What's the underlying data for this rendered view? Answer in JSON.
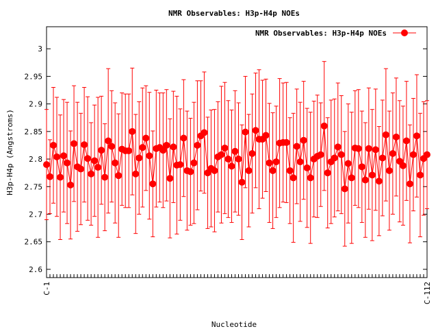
{
  "chart_data": {
    "type": "line",
    "title": "NMR Observables: H3p-H4p NOEs",
    "xlabel": "Nucleotide",
    "ylabel": "H3p-H4p (Angstroms)",
    "ylim": [
      2.585,
      3.04
    ],
    "yticks": [
      2.6,
      2.65,
      2.7,
      2.75,
      2.8,
      2.85,
      2.9,
      2.95,
      3.0
    ],
    "ytick_labels": [
      "2.6",
      "2.65",
      "2.7",
      "2.75",
      "2.8",
      "2.85",
      "2.9",
      "2.95",
      "3"
    ],
    "x_first_label": "C-1",
    "x_last_label": "C-112",
    "legend_position": "top-right",
    "grid": false,
    "series": [
      {
        "name": "NMR Observables: H3p-H4p NOEs",
        "color": "#ff0000",
        "x": [
          1,
          2,
          3,
          4,
          5,
          6,
          7,
          8,
          9,
          10,
          11,
          12,
          13,
          14,
          15,
          16,
          17,
          18,
          19,
          20,
          21,
          22,
          23,
          24,
          25,
          26,
          27,
          28,
          29,
          30,
          31,
          32,
          33,
          34,
          35,
          36,
          37,
          38,
          39,
          40,
          41,
          42,
          43,
          44,
          45,
          46,
          47,
          48,
          49,
          50,
          51,
          52,
          53,
          54,
          55,
          56,
          57,
          58,
          59,
          60,
          61,
          62,
          63,
          64,
          65,
          66,
          67,
          68,
          69,
          70,
          71,
          72,
          73,
          74,
          75,
          76,
          77,
          78,
          79,
          80,
          81,
          82,
          83,
          84,
          85,
          86,
          87,
          88,
          89,
          90,
          91,
          92,
          93,
          94,
          95,
          96,
          97,
          98,
          99,
          100,
          101,
          102,
          103,
          104,
          105,
          106,
          107,
          108,
          109,
          110,
          111,
          112
        ],
        "values": [
          2.79,
          2.768,
          2.825,
          2.804,
          2.767,
          2.806,
          2.793,
          2.753,
          2.828,
          2.786,
          2.782,
          2.826,
          2.801,
          2.773,
          2.797,
          2.785,
          2.816,
          2.767,
          2.833,
          2.823,
          2.793,
          2.77,
          2.818,
          2.815,
          2.815,
          2.85,
          2.773,
          2.802,
          2.821,
          2.838,
          2.806,
          2.755,
          2.819,
          2.821,
          2.816,
          2.825,
          2.765,
          2.822,
          2.789,
          2.79,
          2.838,
          2.779,
          2.777,
          2.793,
          2.825,
          2.842,
          2.848,
          2.775,
          2.783,
          2.779,
          2.804,
          2.808,
          2.82,
          2.8,
          2.787,
          2.814,
          2.8,
          2.758,
          2.849,
          2.779,
          2.81,
          2.852,
          2.836,
          2.836,
          2.843,
          2.793,
          2.779,
          2.795,
          2.829,
          2.83,
          2.83,
          2.779,
          2.766,
          2.823,
          2.795,
          2.834,
          2.784,
          2.766,
          2.8,
          2.805,
          2.808,
          2.86,
          2.775,
          2.795,
          2.802,
          2.822,
          2.808,
          2.746,
          2.792,
          2.766,
          2.82,
          2.819,
          2.786,
          2.762,
          2.819,
          2.771,
          2.817,
          2.76,
          2.802,
          2.844,
          2.779,
          2.81,
          2.84,
          2.796,
          2.788,
          2.833,
          2.755,
          2.808,
          2.842,
          2.771,
          2.801,
          2.808
        ],
        "errors": [
          0.1,
          0.067,
          0.105,
          0.108,
          0.113,
          0.102,
          0.11,
          0.098,
          0.105,
          0.117,
          0.101,
          0.104,
          0.112,
          0.093,
          0.101,
          0.127,
          0.098,
          0.097,
          0.131,
          0.101,
          0.109,
          0.112,
          0.102,
          0.103,
          0.103,
          0.115,
          0.108,
          0.102,
          0.108,
          0.095,
          0.115,
          0.096,
          0.106,
          0.099,
          0.104,
          0.101,
          0.108,
          0.101,
          0.125,
          0.101,
          0.106,
          0.108,
          0.097,
          0.11,
          0.117,
          0.1,
          0.11,
          0.101,
          0.106,
          0.111,
          0.1,
          0.124,
          0.119,
          0.106,
          0.102,
          0.11,
          0.102,
          0.104,
          0.101,
          0.102,
          0.108,
          0.104,
          0.126,
          0.107,
          0.102,
          0.108,
          0.105,
          0.101,
          0.117,
          0.108,
          0.109,
          0.096,
          0.117,
          0.104,
          0.108,
          0.107,
          0.108,
          0.119,
          0.105,
          0.111,
          0.094,
          0.117,
          0.1,
          0.112,
          0.107,
          0.116,
          0.107,
          0.104,
          0.108,
          0.119,
          0.104,
          0.107,
          0.101,
          0.104,
          0.11,
          0.119,
          0.11,
          0.099,
          0.105,
          0.12,
          0.108,
          0.11,
          0.107,
          0.11,
          0.108,
          0.108,
          0.107,
          0.102,
          0.111,
          0.112,
          0.103,
          0.098
        ]
      }
    ]
  }
}
